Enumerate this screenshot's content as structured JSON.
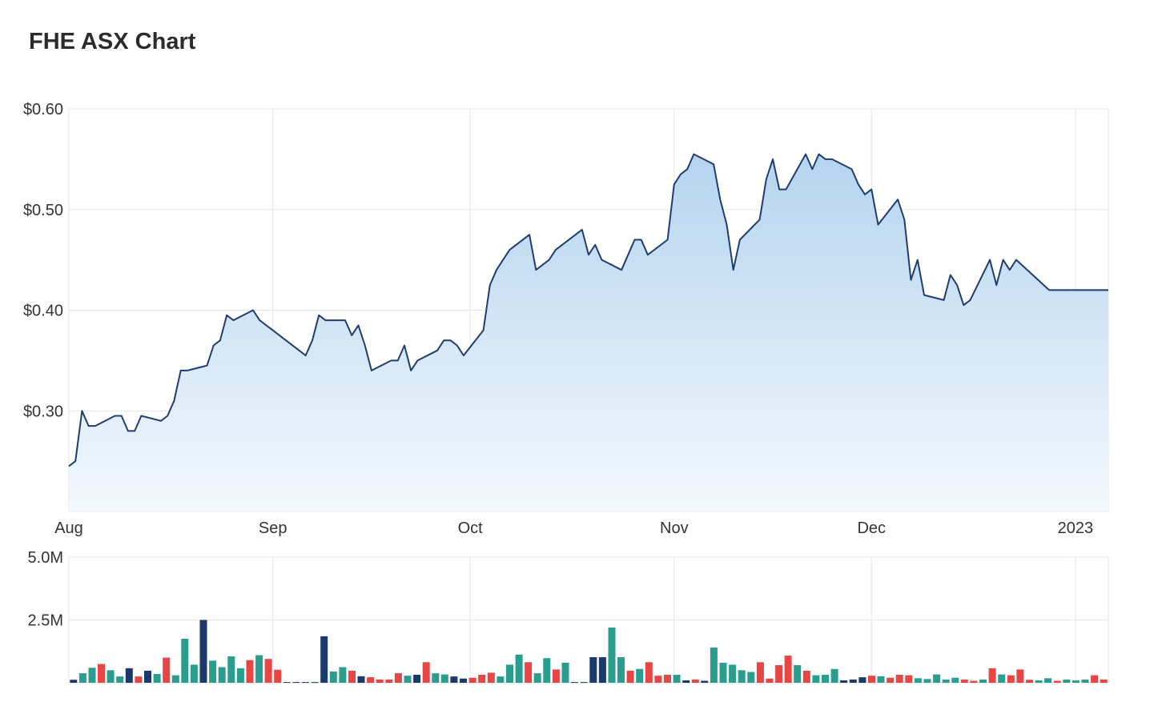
{
  "title": "FHE ASX Chart",
  "colors": {
    "price_line": "#1f3d6e",
    "area_top": "#b5d4ef",
    "area_bottom": "#f3f8fd",
    "vol_up": "#2a9d8f",
    "vol_down": "#e84545",
    "vol_flat": "#1b3a6b",
    "grid": "#e6e6e6"
  },
  "chart_data": [
    {
      "type": "area",
      "name": "price",
      "x_axis": {
        "type": "date",
        "range": [
          "2022-08-01",
          "2023-01-06"
        ],
        "ticks": [
          "Aug",
          "Sep",
          "Oct",
          "Nov",
          "Dec",
          "2023"
        ],
        "tick_dates": [
          "2022-08-01",
          "2022-09-01",
          "2022-10-01",
          "2022-11-01",
          "2022-12-01",
          "2023-01-01"
        ]
      },
      "y_axis": {
        "range": [
          0.2,
          0.6
        ],
        "ticks": [
          "$0.60",
          "$0.50",
          "$0.40",
          "$0.30"
        ],
        "tick_values": [
          0.6,
          0.5,
          0.4,
          0.3
        ]
      },
      "grid": true,
      "x": [
        "2022-08-01",
        "2022-08-02",
        "2022-08-03",
        "2022-08-04",
        "2022-08-05",
        "2022-08-08",
        "2022-08-09",
        "2022-08-10",
        "2022-08-11",
        "2022-08-12",
        "2022-08-15",
        "2022-08-16",
        "2022-08-17",
        "2022-08-18",
        "2022-08-19",
        "2022-08-22",
        "2022-08-23",
        "2022-08-24",
        "2022-08-25",
        "2022-08-26",
        "2022-08-29",
        "2022-08-30",
        "2022-08-31",
        "2022-09-01",
        "2022-09-02",
        "2022-09-05",
        "2022-09-06",
        "2022-09-07",
        "2022-09-08",
        "2022-09-09",
        "2022-09-12",
        "2022-09-13",
        "2022-09-14",
        "2022-09-15",
        "2022-09-16",
        "2022-09-19",
        "2022-09-20",
        "2022-09-21",
        "2022-09-22",
        "2022-09-23",
        "2022-09-26",
        "2022-09-27",
        "2022-09-28",
        "2022-09-29",
        "2022-09-30",
        "2022-10-03",
        "2022-10-04",
        "2022-10-05",
        "2022-10-06",
        "2022-10-07",
        "2022-10-10",
        "2022-10-11",
        "2022-10-12",
        "2022-10-13",
        "2022-10-14",
        "2022-10-17",
        "2022-10-18",
        "2022-10-19",
        "2022-10-20",
        "2022-10-21",
        "2022-10-24",
        "2022-10-25",
        "2022-10-26",
        "2022-10-27",
        "2022-10-28",
        "2022-10-31",
        "2022-11-01",
        "2022-11-02",
        "2022-11-03",
        "2022-11-04",
        "2022-11-07",
        "2022-11-08",
        "2022-11-09",
        "2022-11-10",
        "2022-11-11",
        "2022-11-14",
        "2022-11-15",
        "2022-11-16",
        "2022-11-17",
        "2022-11-18",
        "2022-11-21",
        "2022-11-22",
        "2022-11-23",
        "2022-11-24",
        "2022-11-25",
        "2022-11-28",
        "2022-11-29",
        "2022-11-30",
        "2022-12-01",
        "2022-12-02",
        "2022-12-05",
        "2022-12-06",
        "2022-12-07",
        "2022-12-08",
        "2022-12-09",
        "2022-12-12",
        "2022-12-13",
        "2022-12-14",
        "2022-12-15",
        "2022-12-16",
        "2022-12-19",
        "2022-12-20",
        "2022-12-21",
        "2022-12-22",
        "2022-12-23",
        "2022-12-28",
        "2022-12-29",
        "2022-12-30",
        "2023-01-03",
        "2023-01-04",
        "2023-01-05",
        "2023-01-06"
      ],
      "values": [
        0.245,
        0.25,
        0.3,
        0.285,
        0.285,
        0.295,
        0.295,
        0.28,
        0.28,
        0.295,
        0.29,
        0.295,
        0.31,
        0.34,
        0.34,
        0.345,
        0.365,
        0.37,
        0.395,
        0.39,
        0.4,
        0.39,
        0.385,
        0.38,
        0.375,
        0.36,
        0.355,
        0.37,
        0.395,
        0.39,
        0.39,
        0.375,
        0.385,
        0.365,
        0.34,
        0.35,
        0.35,
        0.365,
        0.34,
        0.35,
        0.36,
        0.37,
        0.37,
        0.365,
        0.355,
        0.38,
        0.425,
        0.44,
        0.45,
        0.46,
        0.475,
        0.44,
        0.445,
        0.45,
        0.46,
        0.475,
        0.48,
        0.455,
        0.465,
        0.45,
        0.44,
        0.455,
        0.47,
        0.47,
        0.455,
        0.47,
        0.525,
        0.535,
        0.54,
        0.555,
        0.545,
        0.51,
        0.485,
        0.44,
        0.47,
        0.49,
        0.53,
        0.55,
        0.52,
        0.52,
        0.555,
        0.54,
        0.555,
        0.55,
        0.55,
        0.54,
        0.525,
        0.515,
        0.52,
        0.485,
        0.51,
        0.49,
        0.43,
        0.45,
        0.415,
        0.41,
        0.435,
        0.425,
        0.405,
        0.41,
        0.45,
        0.425,
        0.45,
        0.44,
        0.45,
        0.42,
        0.42,
        0.42,
        0.42,
        0.42,
        0.42,
        0.42
      ]
    },
    {
      "type": "bar",
      "name": "volume",
      "y_axis": {
        "range": [
          0,
          5000000
        ],
        "ticks": [
          "5.0M",
          "2.5M"
        ],
        "tick_values": [
          5000000,
          2500000
        ]
      },
      "grid": true,
      "values": [
        120000,
        380000,
        600000,
        750000,
        500000,
        250000,
        580000,
        250000,
        480000,
        350000,
        1000000,
        300000,
        1750000,
        720000,
        2500000,
        880000,
        620000,
        1050000,
        580000,
        900000,
        1100000,
        950000,
        520000,
        30000,
        30000,
        30000,
        30000,
        1850000,
        450000,
        620000,
        480000,
        260000,
        220000,
        130000,
        130000,
        380000,
        280000,
        320000,
        820000,
        380000,
        330000,
        250000,
        170000,
        200000,
        320000,
        400000,
        250000,
        720000,
        1120000,
        820000,
        380000,
        980000,
        530000,
        800000,
        30000,
        30000,
        1020000,
        1020000,
        2200000,
        1020000,
        480000,
        550000,
        820000,
        280000,
        320000,
        320000,
        100000,
        130000,
        80000,
        1400000,
        800000,
        720000,
        500000,
        430000,
        820000,
        170000,
        700000,
        1080000,
        700000,
        480000,
        300000,
        320000,
        550000,
        100000,
        130000,
        220000,
        280000,
        260000,
        200000,
        320000,
        300000,
        180000,
        150000,
        330000,
        130000,
        200000,
        130000,
        80000,
        130000,
        580000,
        330000,
        300000,
        530000,
        120000,
        100000,
        180000,
        80000,
        130000,
        100000,
        130000,
        300000,
        130000
      ],
      "direction": [
        "flat",
        "up",
        "up",
        "down",
        "up",
        "up",
        "flat",
        "down",
        "flat",
        "up",
        "down",
        "up",
        "up",
        "up",
        "flat",
        "up",
        "up",
        "up",
        "up",
        "down",
        "up",
        "down",
        "down",
        "flat",
        "flat",
        "flat",
        "flat",
        "flat",
        "up",
        "up",
        "down",
        "flat",
        "down",
        "down",
        "down",
        "down",
        "up",
        "flat",
        "down",
        "up",
        "up",
        "flat",
        "flat",
        "down",
        "down",
        "down",
        "up",
        "up",
        "up",
        "down",
        "up",
        "up",
        "down",
        "up",
        "flat",
        "flat",
        "flat",
        "flat",
        "up",
        "up",
        "down",
        "up",
        "down",
        "down",
        "down",
        "up",
        "flat",
        "down",
        "flat",
        "up",
        "up",
        "up",
        "up",
        "up",
        "down",
        "down",
        "down",
        "down",
        "up",
        "down",
        "up",
        "up",
        "up",
        "flat",
        "flat",
        "flat",
        "down",
        "up",
        "down",
        "down",
        "down",
        "up",
        "up",
        "up",
        "up",
        "up",
        "down",
        "down",
        "up",
        "down",
        "up",
        "down",
        "down",
        "down",
        "up",
        "up",
        "down",
        "up",
        "up",
        "up",
        "down",
        "down"
      ]
    }
  ]
}
